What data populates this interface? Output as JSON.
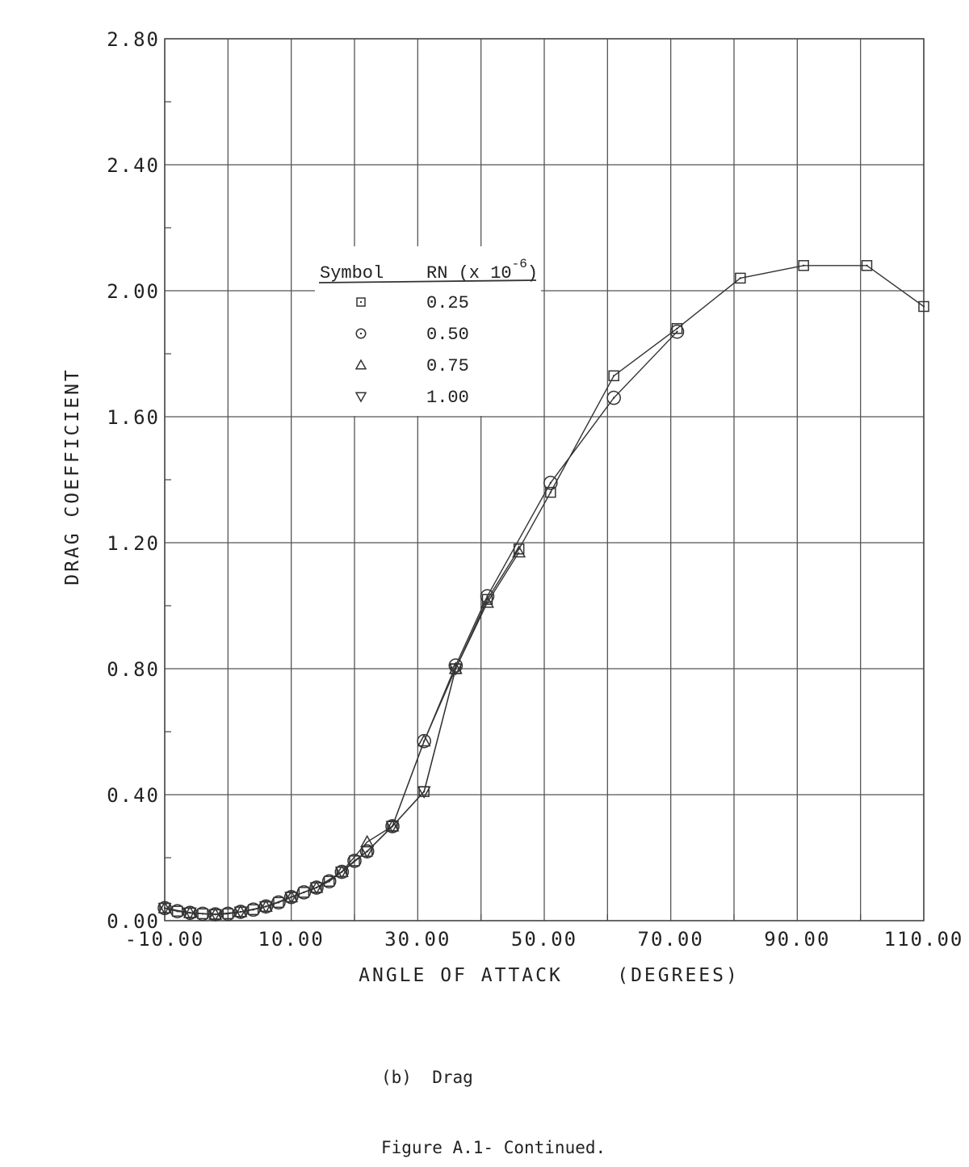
{
  "chart_data": {
    "type": "line",
    "xlabel": "ANGLE OF ATTACK    (DEGREES)",
    "ylabel": "DRAG COEFFICIENT",
    "xlim": [
      -10,
      110
    ],
    "ylim": [
      0,
      2.8
    ],
    "x_ticks": [
      "-10.00",
      "10.00",
      "30.00",
      "50.00",
      "70.00",
      "90.00",
      "110.00"
    ],
    "y_ticks": [
      "0.00",
      "0.40",
      "0.80",
      "1.20",
      "1.60",
      "2.00",
      "2.40",
      "2.80"
    ],
    "grid": true,
    "legend": {
      "header_symbol": "Symbol",
      "header_rn": "RN (x 10",
      "header_exp": "-6",
      "header_close": ")",
      "position": "upper-left",
      "entries": [
        {
          "marker": "square",
          "label": "0.25"
        },
        {
          "marker": "circle",
          "label": "0.50"
        },
        {
          "marker": "triangle-up",
          "label": "0.75"
        },
        {
          "marker": "triangle-down",
          "label": "1.00"
        }
      ]
    },
    "series": [
      {
        "marker": "square",
        "x": [
          -10,
          -8,
          -6,
          -4,
          -2,
          0,
          2,
          4,
          6,
          8,
          10,
          12,
          14,
          16,
          18,
          20,
          22,
          26,
          31,
          36,
          41,
          46,
          51,
          61,
          71,
          81,
          91,
          101,
          110
        ],
        "y": [
          0.04,
          0.03,
          0.025,
          0.022,
          0.02,
          0.022,
          0.028,
          0.035,
          0.045,
          0.058,
          0.075,
          0.09,
          0.105,
          0.125,
          0.155,
          0.19,
          0.22,
          0.3,
          0.41,
          0.8,
          1.02,
          1.18,
          1.36,
          1.73,
          1.88,
          2.04,
          2.08,
          2.08,
          1.95
        ]
      },
      {
        "marker": "circle",
        "x": [
          -10,
          -8,
          -6,
          -4,
          -2,
          0,
          2,
          4,
          6,
          8,
          10,
          12,
          14,
          16,
          18,
          20,
          22,
          26,
          31,
          36,
          41,
          51,
          61,
          71
        ],
        "y": [
          0.04,
          0.03,
          0.025,
          0.022,
          0.02,
          0.022,
          0.028,
          0.035,
          0.045,
          0.058,
          0.075,
          0.09,
          0.105,
          0.125,
          0.155,
          0.19,
          0.22,
          0.3,
          0.57,
          0.81,
          1.03,
          1.39,
          1.66,
          1.87
        ]
      },
      {
        "marker": "triangle-up",
        "x": [
          -10,
          -6,
          -2,
          2,
          6,
          10,
          14,
          18,
          22,
          26,
          31,
          36,
          41,
          46
        ],
        "y": [
          0.04,
          0.025,
          0.02,
          0.028,
          0.045,
          0.075,
          0.105,
          0.155,
          0.25,
          0.3,
          0.57,
          0.8,
          1.01,
          1.17
        ]
      },
      {
        "marker": "triangle-down",
        "x": [
          -10,
          -6,
          -2,
          2,
          6,
          10,
          14,
          18,
          22,
          26,
          31,
          36
        ],
        "y": [
          0.04,
          0.025,
          0.02,
          0.028,
          0.045,
          0.075,
          0.105,
          0.155,
          0.22,
          0.3,
          0.41,
          0.8
        ]
      }
    ]
  },
  "caption": {
    "subfigure": "(b)  Drag",
    "figure": "Figure A.1- Continued."
  }
}
